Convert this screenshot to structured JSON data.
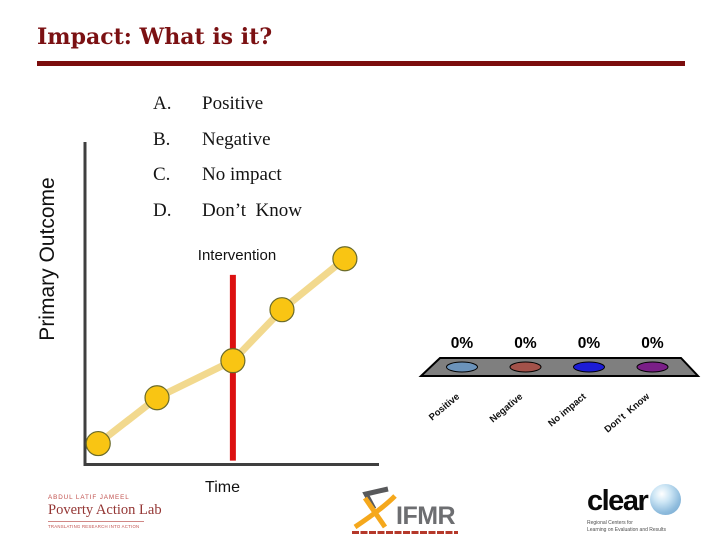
{
  "slide": {
    "title": "Impact: What is it?",
    "title_color": "#7B1113",
    "rule_color": "#7B0D0D"
  },
  "answers": [
    {
      "letter": "A.",
      "label": "Positive"
    },
    {
      "letter": "B.",
      "label": "Negative"
    },
    {
      "letter": "C.",
      "label": "No impact"
    },
    {
      "letter": "D.",
      "label": "Don’t  Know"
    }
  ],
  "chart_data": [
    {
      "type": "line",
      "title": "",
      "xlabel": "Time",
      "ylabel": "Primary Outcome",
      "annotation": "Intervention",
      "axis_tick_labels": "none (conceptual sketch, unlabeled axes)",
      "points_norm": [
        {
          "x": 0.045,
          "y": 0.065
        },
        {
          "x": 0.245,
          "y": 0.207
        },
        {
          "x": 0.503,
          "y": 0.322
        },
        {
          "x": 0.67,
          "y": 0.48
        },
        {
          "x": 0.884,
          "y": 0.638
        }
      ],
      "intervention": {
        "x": 0.503,
        "y_top": 0.588,
        "y_bottom": 0.012,
        "color": "#DC1111"
      },
      "line_color": "#F2D98E",
      "marker_color": "#F9C513",
      "marker_outline": "#6b6b2a",
      "axis_color": "#3F3F3F"
    },
    {
      "type": "bar",
      "subtype": "audience-poll-3d-bars-at-zero",
      "categories": [
        "Positive",
        "Negative",
        "No impact",
        "Don’t  Know"
      ],
      "values": [
        0,
        0,
        0,
        0
      ],
      "value_labels": [
        "0%",
        "0%",
        "0%",
        "0%"
      ],
      "bar_colors": [
        "#6B93BB",
        "#A3524A",
        "#1C1CD6",
        "#7A1F87"
      ],
      "platform_color": "#7F7F7F",
      "platform_outline": "#000000"
    }
  ],
  "logos": {
    "jpal": {
      "line1": "ABDUL LATIF JAMEEL",
      "line2": "Poverty Action Lab",
      "line3": "TRANSLATING RESEARCH INTO ACTION"
    },
    "ifmr": {
      "name": "IFMR"
    },
    "clear": {
      "name": "clear",
      "tagline_line1": "Regional Centers for",
      "tagline_line2": "Learning on Evaluation and Results"
    }
  }
}
